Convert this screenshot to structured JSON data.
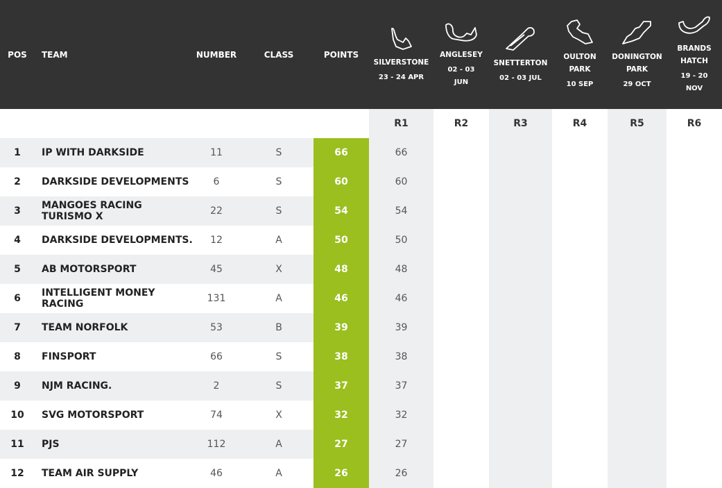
{
  "header": {
    "pos": "POS",
    "team": "TEAM",
    "number": "NUMBER",
    "class": "CLASS",
    "points": "POINTS"
  },
  "tracks": [
    {
      "name_lines": [
        "SILVERSTONE"
      ],
      "date_lines": [
        "23 - 24 APR"
      ],
      "icon": "silverstone-track-icon"
    },
    {
      "name_lines": [
        "ANGLESEY"
      ],
      "date_lines": [
        "02 - 03",
        "JUN"
      ],
      "icon": "anglesey-track-icon"
    },
    {
      "name_lines": [
        "SNETTERTON"
      ],
      "date_lines": [
        "02 - 03 JUL"
      ],
      "icon": "snetterton-track-icon"
    },
    {
      "name_lines": [
        "OULTON",
        "PARK"
      ],
      "date_lines": [
        "10 SEP"
      ],
      "icon": "oulton-park-track-icon"
    },
    {
      "name_lines": [
        "DONINGTON",
        "PARK"
      ],
      "date_lines": [
        "29 OCT"
      ],
      "icon": "donington-park-track-icon"
    },
    {
      "name_lines": [
        "BRANDS",
        "HATCH"
      ],
      "date_lines": [
        "19 - 20",
        "NOV"
      ],
      "icon": "brands-hatch-track-icon"
    }
  ],
  "rounds": [
    "R1",
    "R2",
    "R3",
    "R4",
    "R5",
    "R6"
  ],
  "rows": [
    {
      "pos": "1",
      "team": "IP WITH DARKSIDE",
      "number": "11",
      "class": "S",
      "points": "66",
      "r1": "66"
    },
    {
      "pos": "2",
      "team": "DARKSIDE DEVELOPMENTS",
      "number": "6",
      "class": "S",
      "points": "60",
      "r1": "60"
    },
    {
      "pos": "3",
      "team": "MANGOES RACING TURISMO X",
      "number": "22",
      "class": "S",
      "points": "54",
      "r1": "54"
    },
    {
      "pos": "4",
      "team": "DARKSIDE DEVELOPMENTS.",
      "number": "12",
      "class": "A",
      "points": "50",
      "r1": "50"
    },
    {
      "pos": "5",
      "team": "AB MOTORSPORT",
      "number": "45",
      "class": "X",
      "points": "48",
      "r1": "48"
    },
    {
      "pos": "6",
      "team": "INTELLIGENT MONEY RACING",
      "number": "131",
      "class": "A",
      "points": "46",
      "r1": "46"
    },
    {
      "pos": "7",
      "team": "TEAM NORFOLK",
      "number": "53",
      "class": "B",
      "points": "39",
      "r1": "39"
    },
    {
      "pos": "8",
      "team": "FINSPORT",
      "number": "66",
      "class": "S",
      "points": "38",
      "r1": "38"
    },
    {
      "pos": "9",
      "team": "NJM RACING.",
      "number": "2",
      "class": "S",
      "points": "37",
      "r1": "37"
    },
    {
      "pos": "10",
      "team": "SVG MOTORSPORT",
      "number": "74",
      "class": "X",
      "points": "32",
      "r1": "32"
    },
    {
      "pos": "11",
      "team": "PJS",
      "number": "112",
      "class": "A",
      "points": "27",
      "r1": "27"
    },
    {
      "pos": "12",
      "team": "TEAM AIR SUPPLY",
      "number": "46",
      "class": "A",
      "points": "26",
      "r1": "26"
    }
  ],
  "colors": {
    "header_bg": "#333333",
    "points_green": "#9abf1f",
    "stripe": "#eeeff1"
  }
}
